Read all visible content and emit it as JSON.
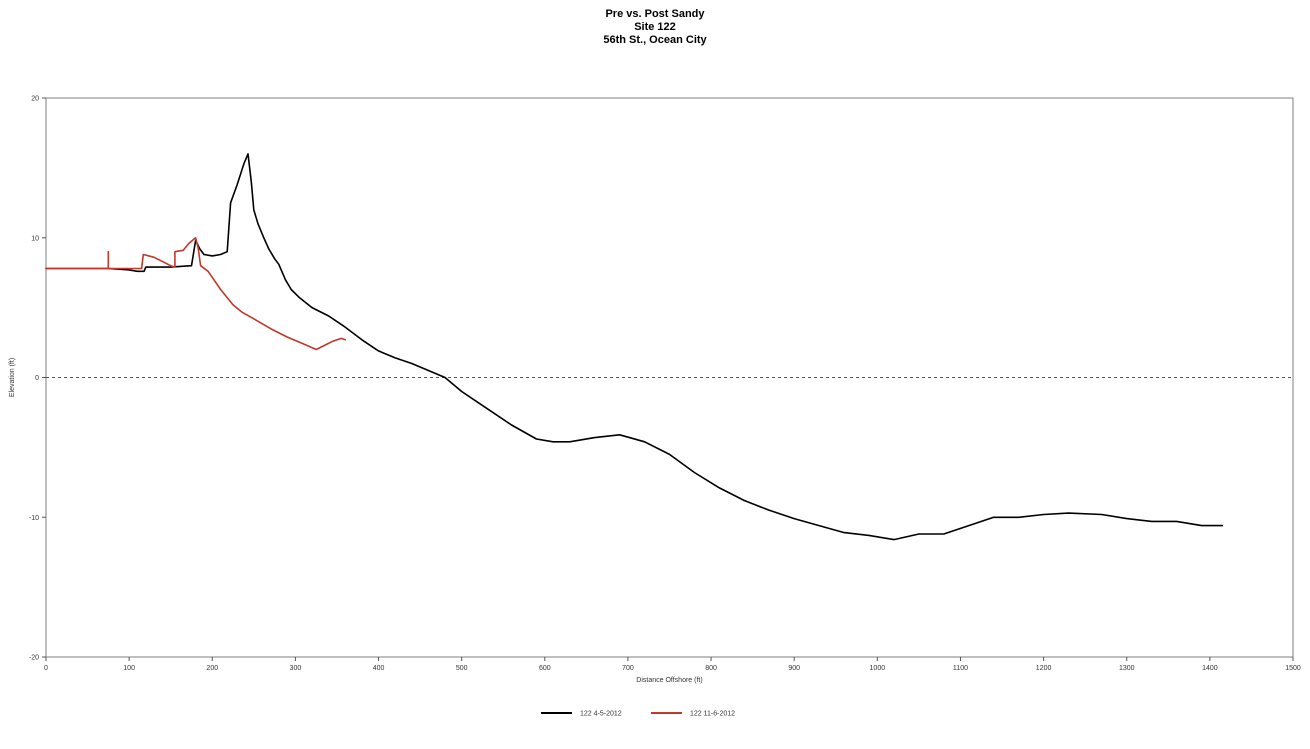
{
  "chart_data": {
    "type": "line",
    "title_lines": [
      "Pre vs. Post Sandy",
      "Site 122",
      "56th St., Ocean City"
    ],
    "xlabel": "Distance Offshore (ft)",
    "ylabel": "Elevation (ft)",
    "xlim": [
      0,
      1500
    ],
    "ylim": [
      -20,
      20
    ],
    "x_ticks": [
      0,
      100,
      200,
      300,
      400,
      500,
      600,
      700,
      800,
      900,
      1000,
      1100,
      1200,
      1300,
      1400,
      1500
    ],
    "y_ticks": [
      20,
      10,
      0,
      -10,
      -20
    ],
    "zero_reference_line": "dashed",
    "grid": false,
    "legend_position": "bottom-center",
    "series": [
      {
        "name": "122 4-5-2012",
        "color": "#000000",
        "points": [
          [
            0,
            7.8
          ],
          [
            40,
            7.8
          ],
          [
            75,
            7.8
          ],
          [
            100,
            7.7
          ],
          [
            110,
            7.6
          ],
          [
            118,
            7.6
          ],
          [
            120,
            7.9
          ],
          [
            150,
            7.9
          ],
          [
            175,
            8.0
          ],
          [
            180,
            9.8
          ],
          [
            185,
            9.2
          ],
          [
            190,
            8.8
          ],
          [
            200,
            8.7
          ],
          [
            210,
            8.8
          ],
          [
            218,
            9.0
          ],
          [
            222,
            12.5
          ],
          [
            230,
            13.8
          ],
          [
            238,
            15.3
          ],
          [
            243,
            16.0
          ],
          [
            247,
            14.0
          ],
          [
            250,
            12.0
          ],
          [
            255,
            11.0
          ],
          [
            262,
            10.0
          ],
          [
            268,
            9.2
          ],
          [
            275,
            8.5
          ],
          [
            280,
            8.1
          ],
          [
            288,
            7.0
          ],
          [
            295,
            6.3
          ],
          [
            305,
            5.7
          ],
          [
            320,
            5.0
          ],
          [
            340,
            4.4
          ],
          [
            360,
            3.6
          ],
          [
            380,
            2.7
          ],
          [
            400,
            1.9
          ],
          [
            420,
            1.4
          ],
          [
            440,
            1.0
          ],
          [
            460,
            0.5
          ],
          [
            480,
            0.0
          ],
          [
            500,
            -1.0
          ],
          [
            520,
            -1.8
          ],
          [
            540,
            -2.6
          ],
          [
            560,
            -3.4
          ],
          [
            590,
            -4.4
          ],
          [
            610,
            -4.6
          ],
          [
            630,
            -4.6
          ],
          [
            660,
            -4.3
          ],
          [
            690,
            -4.1
          ],
          [
            720,
            -4.6
          ],
          [
            750,
            -5.5
          ],
          [
            780,
            -6.8
          ],
          [
            810,
            -7.9
          ],
          [
            840,
            -8.8
          ],
          [
            870,
            -9.5
          ],
          [
            900,
            -10.1
          ],
          [
            930,
            -10.6
          ],
          [
            960,
            -11.1
          ],
          [
            990,
            -11.3
          ],
          [
            1020,
            -11.6
          ],
          [
            1050,
            -11.2
          ],
          [
            1080,
            -11.2
          ],
          [
            1110,
            -10.6
          ],
          [
            1140,
            -10.0
          ],
          [
            1170,
            -10.0
          ],
          [
            1200,
            -9.8
          ],
          [
            1230,
            -9.7
          ],
          [
            1270,
            -9.8
          ],
          [
            1300,
            -10.1
          ],
          [
            1330,
            -10.3
          ],
          [
            1360,
            -10.3
          ],
          [
            1390,
            -10.6
          ],
          [
            1415,
            -10.6
          ]
        ]
      },
      {
        "name": "122 11-6-2012",
        "color": "#c0392b",
        "points": [
          [
            0,
            7.8
          ],
          [
            75,
            7.8
          ],
          [
            75,
            9.0
          ],
          [
            75,
            7.8
          ],
          [
            115,
            7.8
          ],
          [
            117,
            8.8
          ],
          [
            130,
            8.6
          ],
          [
            150,
            8.0
          ],
          [
            155,
            7.9
          ],
          [
            155,
            9.0
          ],
          [
            165,
            9.1
          ],
          [
            172,
            9.6
          ],
          [
            180,
            10.0
          ],
          [
            183,
            9.3
          ],
          [
            186,
            8.0
          ],
          [
            195,
            7.6
          ],
          [
            210,
            6.3
          ],
          [
            225,
            5.2
          ],
          [
            235,
            4.7
          ],
          [
            250,
            4.2
          ],
          [
            270,
            3.5
          ],
          [
            290,
            2.9
          ],
          [
            310,
            2.4
          ],
          [
            325,
            2.0
          ],
          [
            335,
            2.3
          ],
          [
            345,
            2.6
          ],
          [
            355,
            2.8
          ],
          [
            360,
            2.7
          ]
        ]
      }
    ]
  }
}
